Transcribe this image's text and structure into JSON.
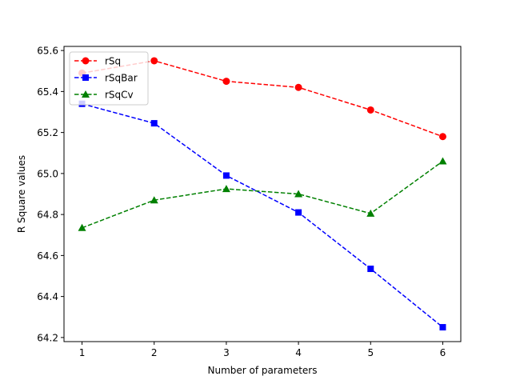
{
  "chart_data": {
    "type": "line",
    "xlabel": "Number of parameters",
    "ylabel": "R Square values",
    "x": [
      1,
      2,
      3,
      4,
      5,
      6
    ],
    "xlim": [
      0.75,
      6.25
    ],
    "ylim": [
      64.18,
      65.62
    ],
    "xticks": [
      1,
      2,
      3,
      4,
      5,
      6
    ],
    "yticks": [
      64.2,
      64.4,
      64.6,
      64.8,
      65.0,
      65.2,
      65.4,
      65.6
    ],
    "ytick_labels": [
      "64.2",
      "64.4",
      "64.6",
      "64.8",
      "65.0",
      "65.2",
      "65.4",
      "65.6"
    ],
    "grid": false,
    "legend_position": "top-left",
    "series": [
      {
        "name": "rSq",
        "values": [
          65.49,
          65.55,
          65.45,
          65.42,
          65.31,
          65.18
        ],
        "color": "#ff0000",
        "marker": "circle",
        "linestyle": "dashed"
      },
      {
        "name": "rSqBar",
        "values": [
          65.34,
          65.245,
          64.99,
          64.81,
          64.535,
          64.25
        ],
        "color": "#0000ff",
        "marker": "square",
        "linestyle": "dashed"
      },
      {
        "name": "rSqCv",
        "values": [
          64.735,
          64.87,
          64.925,
          64.9,
          64.805,
          65.06
        ],
        "color": "#008000",
        "marker": "triangle",
        "linestyle": "dashed"
      }
    ]
  }
}
